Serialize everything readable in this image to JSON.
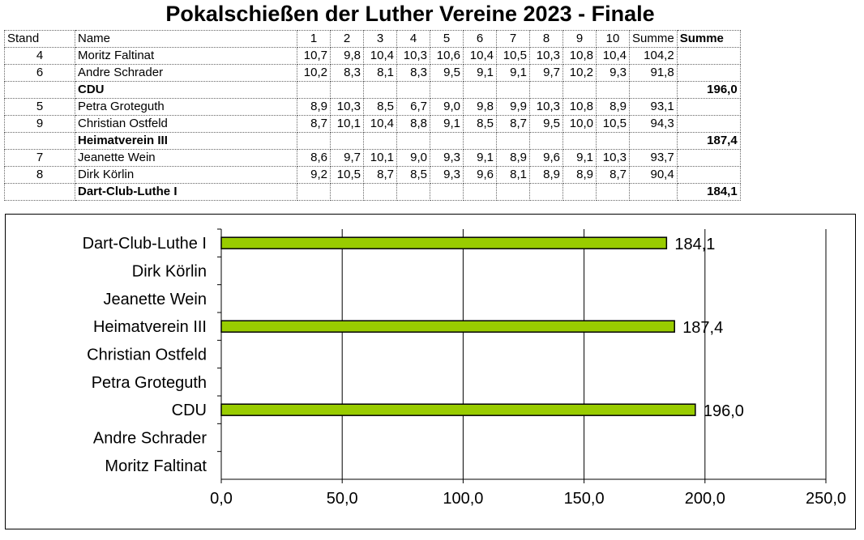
{
  "title": "Pokalschießen der Luther Vereine 2023 - Finale",
  "table": {
    "headers": [
      "Stand",
      "Name",
      "1",
      "2",
      "3",
      "4",
      "5",
      "6",
      "7",
      "8",
      "9",
      "10",
      "Summe",
      "Summe"
    ],
    "rows": [
      {
        "type": "person",
        "cells": [
          "4",
          "Moritz Faltinat",
          "10,7",
          "9,8",
          "10,4",
          "10,3",
          "10,6",
          "10,4",
          "10,5",
          "10,3",
          "10,8",
          "10,4",
          "104,2",
          ""
        ]
      },
      {
        "type": "person",
        "cells": [
          "6",
          "Andre Schrader",
          "10,2",
          "8,3",
          "8,1",
          "8,3",
          "9,5",
          "9,1",
          "9,1",
          "9,7",
          "10,2",
          "9,3",
          "91,8",
          ""
        ]
      },
      {
        "type": "team",
        "cells": [
          "",
          "CDU",
          "",
          "",
          "",
          "",
          "",
          "",
          "",
          "",
          "",
          "",
          "",
          "196,0"
        ]
      },
      {
        "type": "person",
        "cells": [
          "5",
          "Petra Groteguth",
          "8,9",
          "10,3",
          "8,5",
          "6,7",
          "9,0",
          "9,8",
          "9,9",
          "10,3",
          "10,8",
          "8,9",
          "93,1",
          ""
        ]
      },
      {
        "type": "person",
        "cells": [
          "9",
          "Christian Ostfeld",
          "8,7",
          "10,1",
          "10,4",
          "8,8",
          "9,1",
          "8,5",
          "8,7",
          "9,5",
          "10,0",
          "10,5",
          "94,3",
          ""
        ]
      },
      {
        "type": "team",
        "cells": [
          "",
          "Heimatverein III",
          "",
          "",
          "",
          "",
          "",
          "",
          "",
          "",
          "",
          "",
          "",
          "187,4"
        ]
      },
      {
        "type": "person",
        "cells": [
          "7",
          "Jeanette Wein",
          "8,6",
          "9,7",
          "10,1",
          "9,0",
          "9,3",
          "9,1",
          "8,9",
          "9,6",
          "9,1",
          "10,3",
          "93,7",
          ""
        ]
      },
      {
        "type": "person",
        "cells": [
          "8",
          "Dirk Körlin",
          "9,2",
          "10,5",
          "8,7",
          "8,5",
          "9,3",
          "9,6",
          "8,1",
          "8,9",
          "8,9",
          "8,7",
          "90,4",
          ""
        ]
      },
      {
        "type": "team",
        "cells": [
          "",
          "Dart-Club-Luthe I",
          "",
          "",
          "",
          "",
          "",
          "",
          "",
          "",
          "",
          "",
          "",
          "184,1"
        ]
      }
    ]
  },
  "chart_data": {
    "type": "bar",
    "orientation": "horizontal",
    "categories": [
      "Moritz Faltinat",
      "Andre Schrader",
      "CDU",
      "Petra Groteguth",
      "Christian Ostfeld",
      "Heimatverein III",
      "Jeanette Wein",
      "Dirk Körlin",
      "Dart-Club-Luthe I"
    ],
    "values": [
      null,
      null,
      196.0,
      null,
      null,
      187.4,
      null,
      null,
      184.1
    ],
    "data_labels": [
      "",
      "",
      "196,0",
      "",
      "",
      "187,4",
      "",
      "",
      "184,1"
    ],
    "xlim": [
      0,
      250
    ],
    "xticks": [
      0,
      50,
      100,
      150,
      200,
      250
    ],
    "xtick_labels": [
      "0,0",
      "50,0",
      "100,0",
      "150,0",
      "200,0",
      "250,0"
    ],
    "grid": "vertical",
    "bar_color": "#99cc00",
    "title": "",
    "xlabel": "",
    "ylabel": ""
  }
}
